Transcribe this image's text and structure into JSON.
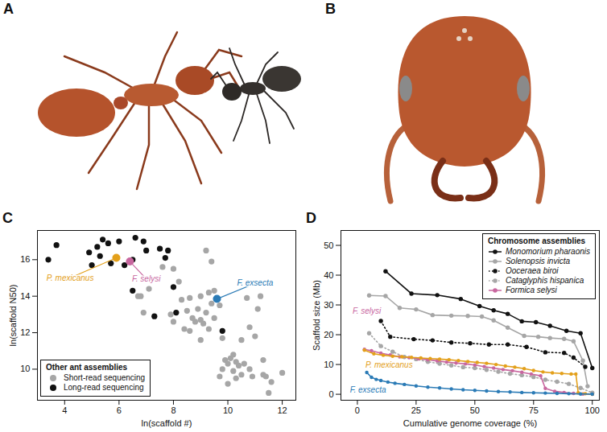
{
  "photos": [
    {
      "panel": "A"
    },
    {
      "panel": "B"
    }
  ],
  "chart_data": [
    {
      "panel": "C",
      "type": "scatter",
      "x_label": "ln(scaffold #)",
      "y_label": "ln(scaffold N50)",
      "xlim": [
        3,
        12.5
      ],
      "ylim": [
        8.3,
        17.6
      ],
      "xticks": [
        4,
        6,
        8,
        10,
        12
      ],
      "yticks": [
        10,
        12,
        14,
        16
      ],
      "legend": "bottom-left",
      "legend_title": "Other ant assemblies",
      "series": [
        {
          "name": "Short-read sequencing",
          "color": "#a6a6a6",
          "marker": "circle",
          "x": [
            6.8,
            6.9,
            7.1,
            7.6,
            8.0,
            8.2,
            8.3,
            8.5,
            8.6,
            8.7,
            8.8,
            8.9,
            9.0,
            9.0,
            9.1,
            9.2,
            9.3,
            9.3,
            9.4,
            9.5,
            9.5,
            9.2,
            9.4,
            9.7,
            9.8,
            9.9,
            9.8,
            10.0,
            10.1,
            10.2,
            10.3,
            10.4,
            10.5,
            10.5,
            10.6,
            10.8,
            10.9,
            10.7,
            10.8,
            11.0,
            11.1,
            11.2,
            11.3,
            11.4,
            11.5,
            11.6,
            11.3,
            12.0,
            10.2,
            9.7,
            10.3,
            10.0,
            8.4,
            8.0,
            7.9,
            8.6,
            9.0,
            6.7
          ],
          "values": [
            14.0,
            13.1,
            14.4,
            15.6,
            15.5,
            14.8,
            13.8,
            13.2,
            13.9,
            12.8,
            12.6,
            13.3,
            14.0,
            12.7,
            12.5,
            13.1,
            12.2,
            14.2,
            13.6,
            12.8,
            14.3,
            16.5,
            15.9,
            13.5,
            11.7,
            10.5,
            10.0,
            10.3,
            10.6,
            9.9,
            10.4,
            10.2,
            9.7,
            11.6,
            10.3,
            10.0,
            9.6,
            13.9,
            12.3,
            11.8,
            13.3,
            14.0,
            9.7,
            9.6,
            8.7,
            9.3,
            10.5,
            9.8,
            10.8,
            9.6,
            9.5,
            9.2,
            12.2,
            12.6,
            13.0,
            12.1,
            11.6,
            14.0
          ]
        },
        {
          "name": "Long-read sequencing",
          "color": "#111111",
          "marker": "circle",
          "x": [
            3.4,
            3.7,
            4.9,
            5.0,
            5.2,
            5.3,
            5.4,
            5.6,
            5.7,
            6.0,
            6.5,
            6.5,
            6.6,
            6.9,
            7.0,
            7.3,
            7.5,
            7.7,
            7.8,
            8.0,
            8.1,
            9.8,
            6.2
          ],
          "values": [
            16.0,
            16.8,
            16.4,
            15.7,
            16.7,
            16.2,
            17.1,
            16.9,
            15.8,
            17.0,
            16.0,
            14.3,
            17.2,
            17.0,
            16.5,
            12.9,
            16.6,
            16.1,
            16.5,
            14.5,
            13.1,
            12.1,
            15.7
          ]
        },
        {
          "name": "P. mexicanus",
          "color": "#e3a01b",
          "marker": "circle",
          "x": [
            5.9
          ],
          "values": [
            16.1
          ]
        },
        {
          "name": "F. selysi",
          "color": "#c8679f",
          "marker": "circle",
          "x": [
            6.4
          ],
          "values": [
            15.9
          ]
        },
        {
          "name": "F. exsecta",
          "color": "#2b7bb6",
          "marker": "circle",
          "x": [
            9.6
          ],
          "values": [
            13.85
          ]
        }
      ],
      "annotations": [
        {
          "text": "P. mexicanus",
          "x": 4.2,
          "y": 15.0,
          "color": "#e3a01b"
        },
        {
          "text": "F. selysi",
          "x": 7.0,
          "y": 14.95,
          "color": "#c8679f"
        },
        {
          "text": "F. exsecta",
          "x": 11.0,
          "y": 14.7,
          "color": "#2b7bb6"
        }
      ]
    },
    {
      "panel": "D",
      "type": "line",
      "x_label": "Cumulative genome coverage (%)",
      "y_label": "Scaffold size (Mb)",
      "xlim": [
        -7,
        103
      ],
      "ylim": [
        -2,
        55
      ],
      "xticks": [
        0,
        25,
        50,
        75,
        100
      ],
      "yticks": [
        0,
        10,
        20,
        30,
        40,
        50
      ],
      "legend": "top-right",
      "legend_title": "Chromosome assemblies",
      "series": [
        {
          "name": "Monomorium pharaonis",
          "color": "#111111",
          "marker": "circle",
          "line_style": "solid",
          "x": [
            12,
            23,
            34,
            44,
            52,
            58,
            64,
            70,
            76,
            82,
            89,
            95,
            100
          ],
          "values": [
            41.3,
            33.8,
            33.3,
            32.0,
            29.6,
            28.2,
            27.0,
            24.5,
            24.2,
            23.0,
            21.3,
            20.5,
            8.8
          ]
        },
        {
          "name": "Solenopsis invicta",
          "color": "#a6a6a6",
          "marker": "circle",
          "line_style": "solid",
          "x": [
            5,
            12,
            18,
            25,
            32,
            40,
            47,
            53,
            58,
            64,
            71,
            77,
            82,
            88,
            92,
            96,
            98
          ],
          "values": [
            33.2,
            33.0,
            29.0,
            28.5,
            26.6,
            26.4,
            26.3,
            26.1,
            24.8,
            22.4,
            19.6,
            19.3,
            18.9,
            18.6,
            17.8,
            11.3,
            2.7
          ]
        },
        {
          "name": "Ooceraea biroi",
          "color": "#111111",
          "marker": "circle",
          "line_style": "dotted",
          "x": [
            10,
            14,
            24,
            32,
            40,
            48,
            56,
            64,
            72,
            80,
            88,
            92,
            97
          ],
          "values": [
            24.6,
            19.3,
            18.5,
            18.1,
            17.4,
            17.1,
            16.7,
            16.7,
            15.9,
            14.1,
            13.9,
            12.3,
            9.2
          ]
        },
        {
          "name": "Cataglyphis hispanica",
          "color": "#a6a6a6",
          "marker": "circle",
          "line_style": "dotted",
          "x": [
            5,
            10,
            15,
            20,
            25,
            30,
            35,
            40,
            45,
            50,
            55,
            60,
            65,
            70,
            75,
            80,
            85,
            90,
            95,
            100
          ],
          "values": [
            20.5,
            16.2,
            14.3,
            12.5,
            11.8,
            10.9,
            10.3,
            9.7,
            9.1,
            8.8,
            8.2,
            7.6,
            6.9,
            6.4,
            5.8,
            4.9,
            4.2,
            3.5,
            2.1,
            0.5
          ]
        },
        {
          "name": "Formica selysi",
          "color": "#c8679f",
          "marker": "circle",
          "line_style": "solid",
          "x": [
            3,
            6,
            10,
            14,
            18,
            22,
            26,
            30,
            34,
            38,
            42,
            46,
            50,
            54,
            58,
            62,
            66,
            70,
            74,
            78,
            80,
            84,
            88,
            92,
            96,
            100
          ],
          "values": [
            15.1,
            14.6,
            13.8,
            13.2,
            12.6,
            12.3,
            11.9,
            11.6,
            11.2,
            10.8,
            10.5,
            10.2,
            9.8,
            9.3,
            8.8,
            8.3,
            7.9,
            7.4,
            6.8,
            6.2,
            2.0,
            1.0,
            0.6,
            0.3,
            0.1,
            0.0
          ]
        },
        {
          "name": "P. mexicanus",
          "color": "#e3a01b",
          "marker": "circle",
          "line_style": "solid",
          "x": [
            3,
            7,
            11,
            15,
            19,
            23,
            27,
            31,
            35,
            39,
            43,
            47,
            51,
            55,
            59,
            63,
            67,
            71,
            75,
            79,
            83,
            87,
            91,
            93,
            94,
            97,
            100
          ],
          "values": [
            14.8,
            13.6,
            13.1,
            12.8,
            12.6,
            12.4,
            12.2,
            12.0,
            11.8,
            11.6,
            11.3,
            11.0,
            10.7,
            10.4,
            10.0,
            9.5,
            9.1,
            8.6,
            8.0,
            7.5,
            7.2,
            7.0,
            6.8,
            6.8,
            0.5,
            0.2,
            0.0
          ]
        },
        {
          "name": "F. exsecta",
          "color": "#2b7bb6",
          "marker": "circle",
          "line_style": "solid",
          "x": [
            4,
            6,
            8,
            10,
            13,
            16,
            20,
            25,
            30,
            35,
            40,
            45,
            50,
            55,
            60,
            65,
            70,
            75,
            80,
            85,
            90,
            95,
            100
          ],
          "values": [
            7.3,
            5.7,
            5.0,
            4.6,
            4.1,
            3.7,
            3.3,
            2.8,
            2.4,
            2.1,
            1.8,
            1.5,
            1.3,
            1.1,
            0.9,
            0.75,
            0.6,
            0.5,
            0.4,
            0.3,
            0.2,
            0.1,
            0.05
          ]
        }
      ],
      "annotations": [
        {
          "text": "F. selysi",
          "x": 4,
          "y": 28,
          "color": "#c8679f"
        },
        {
          "text": "P. mexicanus",
          "x": 13.5,
          "y": 9.8,
          "color": "#e3a01b"
        },
        {
          "text": "F. exsecta",
          "x": 4.5,
          "y": 1.5,
          "color": "#2b7bb6"
        }
      ]
    }
  ]
}
